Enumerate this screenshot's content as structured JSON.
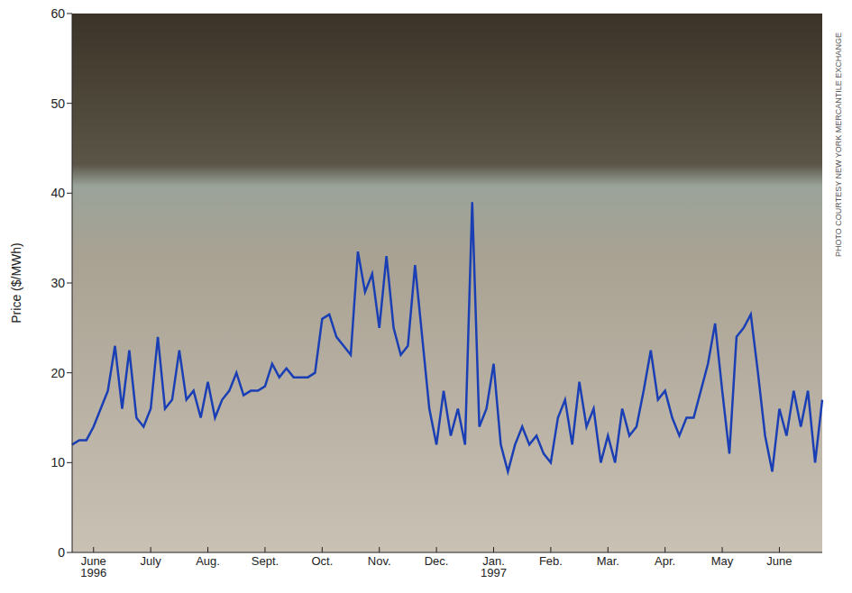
{
  "chart_data": {
    "type": "line",
    "y_label": "Price ($/MWh)",
    "annotations": [
      "PHOTO COURTESY NEW YORK MERCANTILE EXCHANGE"
    ],
    "categories": [
      null,
      null,
      null,
      "June 1996",
      null,
      null,
      null,
      null,
      null,
      null,
      null,
      "July",
      null,
      null,
      null,
      null,
      null,
      null,
      null,
      "Aug.",
      null,
      null,
      null,
      null,
      null,
      null,
      null,
      "Sept.",
      null,
      null,
      null,
      null,
      null,
      null,
      null,
      "Oct.",
      null,
      null,
      null,
      null,
      null,
      null,
      null,
      "Nov.",
      null,
      null,
      null,
      null,
      null,
      null,
      null,
      "Dec.",
      null,
      null,
      null,
      null,
      null,
      null,
      null,
      "Jan. 1997",
      null,
      null,
      null,
      null,
      null,
      null,
      null,
      "Feb.",
      null,
      null,
      null,
      null,
      null,
      null,
      null,
      "Mar.",
      null,
      null,
      null,
      null,
      null,
      null,
      null,
      "Apr.",
      null,
      null,
      null,
      null,
      null,
      null,
      null,
      "May",
      null,
      null,
      null,
      null,
      null,
      null,
      null,
      "June",
      null,
      null,
      null,
      null,
      null,
      null
    ],
    "values": [
      12,
      12.5,
      12.5,
      14,
      16,
      18,
      23,
      16,
      22.5,
      15,
      14,
      16,
      24,
      16,
      17,
      22.5,
      17,
      18,
      15,
      19,
      15,
      17,
      18,
      20,
      17.5,
      18,
      18,
      18.5,
      21,
      19.5,
      20.5,
      19.5,
      19.5,
      19.5,
      20,
      26,
      26.5,
      24,
      23,
      22,
      33.5,
      29,
      31,
      25,
      33,
      25,
      22,
      23,
      32,
      24,
      16,
      12,
      18,
      13,
      16,
      12,
      39,
      14,
      16,
      21,
      12,
      9,
      12,
      14,
      12,
      13,
      11,
      10,
      15,
      17,
      12,
      19,
      14,
      16,
      10,
      13,
      10,
      16,
      13,
      14,
      18,
      22.5,
      17,
      18,
      15,
      13,
      15,
      15,
      18,
      21,
      25.5,
      18,
      11,
      24,
      25,
      26.5,
      20,
      13,
      9,
      16,
      13,
      18,
      14,
      18,
      10,
      17
    ],
    "color": "#1a3fb5",
    "ylim": [
      0,
      60
    ],
    "yticks": [
      0,
      10,
      20,
      30,
      40,
      50,
      60
    ],
    "grid": false
  }
}
